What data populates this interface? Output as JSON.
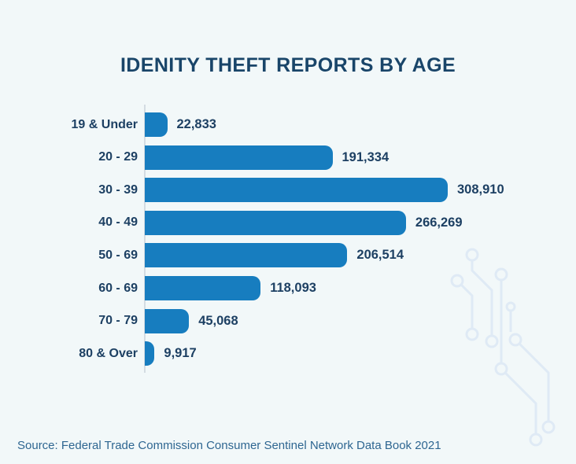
{
  "title": "IDENITY THEFT REPORTS BY AGE",
  "source_label": "Source: Federal Trade Commission Consumer Sentinel Network Data Book 2021",
  "colors": {
    "background": "#f2f8f9",
    "bar": "#177dbf",
    "title_text": "#194569",
    "label_text": "#1d4063",
    "source_text": "#2e6691",
    "axis_line": "#d4dce2",
    "decoration": "#dfeaf5"
  },
  "decoration": "circuit-board-pattern",
  "chart_data": {
    "type": "bar",
    "orientation": "horizontal",
    "title": "IDENITY THEFT REPORTS BY AGE",
    "categories": [
      "19 & Under",
      "20 - 29",
      "30 - 39",
      "40 - 49",
      "50 - 69",
      "60 - 69",
      "70 - 79",
      "80 & Over"
    ],
    "values": [
      22833,
      191334,
      308910,
      266269,
      206514,
      118093,
      45068,
      9917
    ],
    "value_labels": [
      "22,833",
      "191,334",
      "308,910",
      "266,269",
      "206,514",
      "118,093",
      "45,068",
      "9,917"
    ],
    "xlabel": "",
    "ylabel": "",
    "xlim": [
      0,
      320000
    ],
    "grid": false,
    "legend": false,
    "data_labels": "outside-end",
    "source": "Source: Federal Trade Commission Consumer Sentinel Network Data Book 2021"
  }
}
